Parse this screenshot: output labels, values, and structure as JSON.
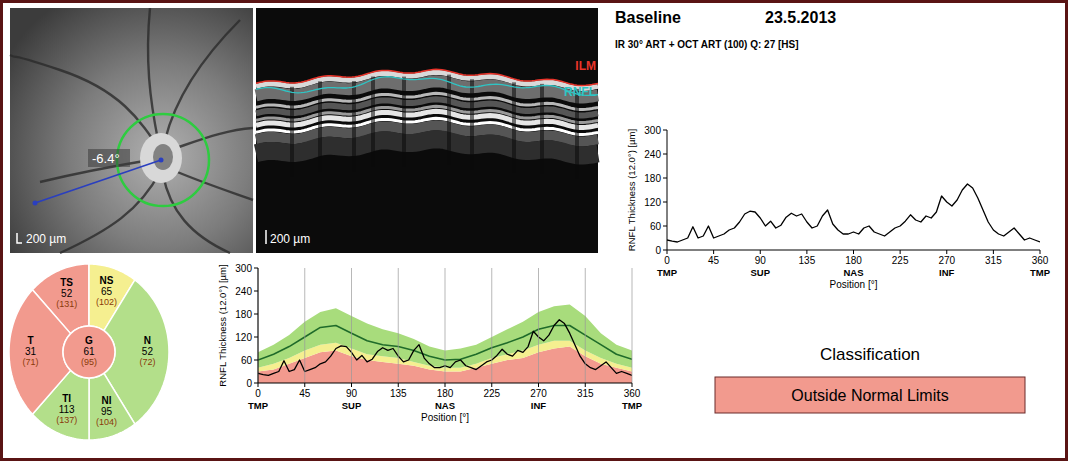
{
  "header": {
    "title": "Baseline",
    "date": "23.5.2013",
    "scan_info": "IR 30° ART + OCT ART (100) Q: 27 [HS]"
  },
  "fundus": {
    "angle_label": "-6.4°",
    "scale_label": "200 µm"
  },
  "oct": {
    "scale_label": "200 µm",
    "layer_labels": [
      {
        "label": "ILM",
        "color": "#e8342a"
      },
      {
        "label": "RNFL",
        "color": "#2fc4c4"
      }
    ]
  },
  "sectors": [
    {
      "name": "TS",
      "value": 52,
      "normative": "(131)",
      "color": "#f29a8e"
    },
    {
      "name": "NS",
      "value": 65,
      "normative": "(102)",
      "color": "#f5ef90"
    },
    {
      "name": "N",
      "value": 52,
      "normative": "(72)",
      "color": "#b3df8a"
    },
    {
      "name": "NI",
      "value": 95,
      "normative": "(104)",
      "color": "#b3df8a"
    },
    {
      "name": "TI",
      "value": 113,
      "normative": "(137)",
      "color": "#b3df8a"
    },
    {
      "name": "T",
      "value": 31,
      "normative": "(71)",
      "color": "#f29a8e"
    },
    {
      "name": "G",
      "value": 61,
      "normative": "(95)",
      "color": "#f29a8e"
    }
  ],
  "classification": {
    "title": "Classification",
    "result": "Outside Normal Limits",
    "color": "#f29a8e"
  },
  "chart_data": [
    {
      "type": "line",
      "y_label": "RNFL Thickness (12.0°) [µm]",
      "x_label": "Position [°]",
      "xlim": [
        0,
        360
      ],
      "ylim": [
        0,
        300
      ],
      "xticks": [
        0,
        45,
        90,
        135,
        180,
        225,
        270,
        315,
        360
      ],
      "yticks": [
        0,
        60,
        120,
        180,
        240,
        300
      ],
      "x_region_labels": [
        {
          "value": 0,
          "label": "TMP"
        },
        {
          "value": 90,
          "label": "SUP"
        },
        {
          "value": 180,
          "label": "NAS"
        },
        {
          "value": 270,
          "label": "INF"
        },
        {
          "value": 360,
          "label": "TMP"
        }
      ],
      "grid": true,
      "series": [
        {
          "type": "area",
          "color": "#f29a8e",
          "x": [
            0,
            15,
            30,
            45,
            60,
            75,
            90,
            105,
            120,
            135,
            150,
            165,
            180,
            195,
            210,
            225,
            240,
            255,
            270,
            285,
            300,
            315,
            330,
            345,
            360
          ],
          "values": [
            30,
            35,
            50,
            65,
            80,
            85,
            70,
            60,
            55,
            50,
            45,
            35,
            30,
            30,
            40,
            50,
            60,
            65,
            80,
            90,
            95,
            70,
            50,
            40,
            30
          ]
        },
        {
          "type": "area",
          "color": "#f5ef90",
          "x": [
            0,
            15,
            30,
            45,
            60,
            75,
            90,
            105,
            120,
            135,
            150,
            165,
            180,
            195,
            210,
            225,
            240,
            255,
            270,
            285,
            300,
            315,
            330,
            345,
            360
          ],
          "values": [
            40,
            50,
            65,
            85,
            100,
            105,
            90,
            75,
            70,
            65,
            55,
            45,
            40,
            40,
            50,
            65,
            75,
            85,
            100,
            110,
            110,
            85,
            65,
            50,
            40
          ]
        },
        {
          "type": "area",
          "color": "#a8dc7c",
          "x": [
            0,
            15,
            30,
            45,
            60,
            75,
            90,
            105,
            120,
            135,
            150,
            165,
            180,
            195,
            210,
            225,
            240,
            255,
            270,
            285,
            300,
            315,
            330,
            345,
            360
          ],
          "values": [
            80,
            100,
            125,
            160,
            185,
            195,
            175,
            155,
            140,
            130,
            115,
            95,
            85,
            90,
            100,
            120,
            140,
            160,
            185,
            200,
            205,
            175,
            130,
            100,
            85
          ]
        },
        {
          "type": "line",
          "color": "#1f6b2a",
          "x": [
            0,
            15,
            30,
            45,
            60,
            75,
            90,
            105,
            120,
            135,
            150,
            165,
            180,
            195,
            210,
            225,
            240,
            255,
            270,
            285,
            300,
            315,
            330,
            345,
            360
          ],
          "values": [
            60,
            75,
            95,
            120,
            145,
            150,
            130,
            110,
            100,
            95,
            85,
            70,
            60,
            62,
            75,
            92,
            105,
            120,
            140,
            150,
            150,
            125,
            100,
            75,
            62
          ]
        },
        {
          "type": "line",
          "color": "#000000",
          "x": [
            0,
            5,
            10,
            15,
            20,
            25,
            30,
            35,
            40,
            45,
            50,
            55,
            60,
            65,
            70,
            75,
            80,
            85,
            90,
            95,
            100,
            105,
            110,
            115,
            120,
            125,
            130,
            135,
            140,
            145,
            150,
            155,
            160,
            165,
            170,
            175,
            180,
            185,
            190,
            195,
            200,
            205,
            210,
            215,
            220,
            225,
            230,
            235,
            240,
            245,
            250,
            255,
            260,
            265,
            270,
            275,
            280,
            285,
            290,
            295,
            300,
            305,
            310,
            315,
            320,
            325,
            330,
            335,
            340,
            345,
            350,
            355,
            360
          ],
          "values": [
            25,
            22,
            20,
            25,
            30,
            58,
            30,
            35,
            60,
            30,
            35,
            40,
            50,
            55,
            70,
            90,
            97,
            95,
            80,
            60,
            72,
            55,
            62,
            82,
            92,
            85,
            90,
            70,
            55,
            60,
            85,
            100,
            65,
            50,
            40,
            40,
            45,
            40,
            55,
            60,
            45,
            40,
            35,
            45,
            55,
            60,
            72,
            88,
            75,
            70,
            85,
            80,
            95,
            135,
            120,
            110,
            125,
            150,
            165,
            155,
            130,
            100,
            70,
            50,
            40,
            35,
            45,
            55,
            40,
            25,
            30,
            25,
            20
          ]
        }
      ]
    },
    {
      "type": "line",
      "y_label": "RNFL Thickness (12.0°) [µm]",
      "x_label": "Position [°]",
      "xlim": [
        0,
        360
      ],
      "ylim": [
        0,
        300
      ],
      "xticks": [
        0,
        45,
        90,
        135,
        180,
        225,
        270,
        315,
        360
      ],
      "yticks": [
        0,
        60,
        120,
        180,
        240,
        300
      ],
      "x_region_labels": [
        {
          "value": 0,
          "label": "TMP"
        },
        {
          "value": 90,
          "label": "SUP"
        },
        {
          "value": 180,
          "label": "NAS"
        },
        {
          "value": 270,
          "label": "INF"
        },
        {
          "value": 360,
          "label": "TMP"
        }
      ],
      "grid": false,
      "series": [
        {
          "type": "line",
          "color": "#000000",
          "x": [
            0,
            5,
            10,
            15,
            20,
            25,
            30,
            35,
            40,
            45,
            50,
            55,
            60,
            65,
            70,
            75,
            80,
            85,
            90,
            95,
            100,
            105,
            110,
            115,
            120,
            125,
            130,
            135,
            140,
            145,
            150,
            155,
            160,
            165,
            170,
            175,
            180,
            185,
            190,
            195,
            200,
            205,
            210,
            215,
            220,
            225,
            230,
            235,
            240,
            245,
            250,
            255,
            260,
            265,
            270,
            275,
            280,
            285,
            290,
            295,
            300,
            305,
            310,
            315,
            320,
            325,
            330,
            335,
            340,
            345,
            350,
            355,
            360
          ],
          "values": [
            25,
            22,
            20,
            25,
            30,
            58,
            30,
            35,
            60,
            30,
            35,
            40,
            50,
            55,
            70,
            90,
            97,
            95,
            80,
            60,
            72,
            55,
            62,
            82,
            92,
            85,
            90,
            70,
            55,
            60,
            85,
            100,
            65,
            50,
            40,
            40,
            45,
            40,
            55,
            60,
            45,
            40,
            35,
            45,
            55,
            60,
            72,
            88,
            75,
            70,
            85,
            80,
            95,
            135,
            120,
            110,
            125,
            150,
            165,
            155,
            130,
            100,
            70,
            50,
            40,
            35,
            45,
            55,
            40,
            25,
            30,
            25,
            20
          ]
        }
      ]
    }
  ]
}
